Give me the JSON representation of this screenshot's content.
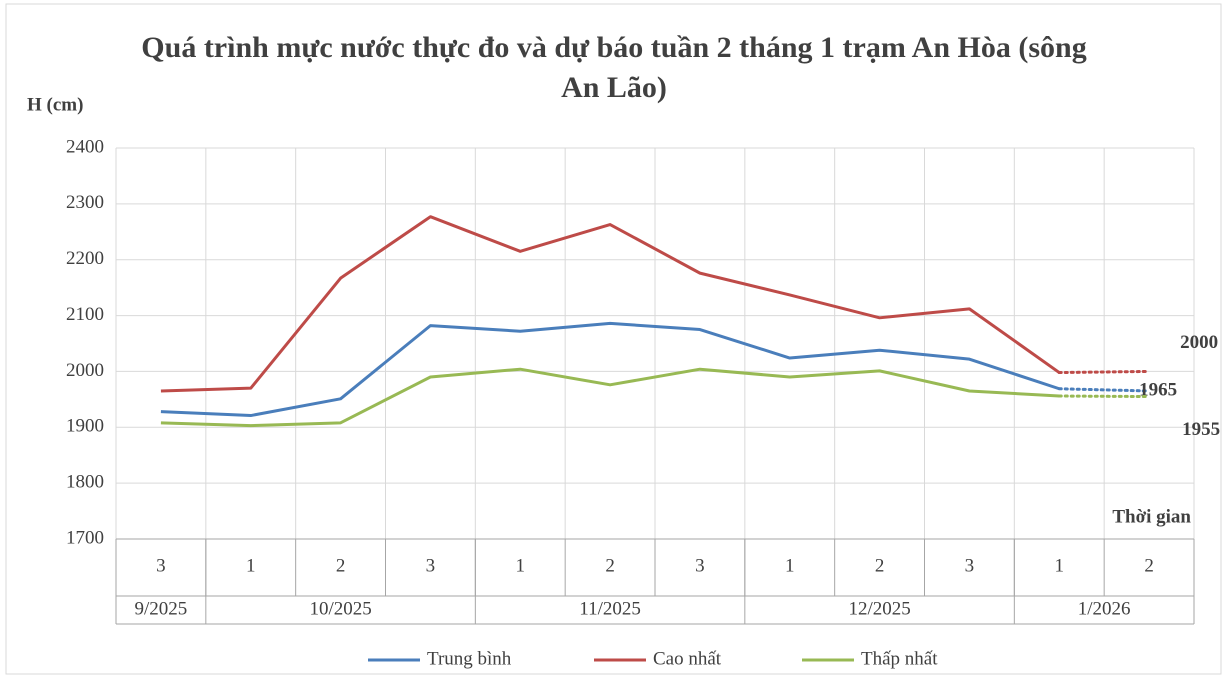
{
  "chart_data": {
    "type": "line",
    "title": "Quá trình mực nước thực đo và dự báo tuần 2 tháng 1 trạm An Hòa (sông An Lão)",
    "y_label": "H (cm)",
    "x_label": "Thời gian",
    "categories": [
      "3",
      "1",
      "2",
      "3",
      "1",
      "2",
      "3",
      "1",
      "2",
      "3",
      "1",
      "2"
    ],
    "category_groups": [
      {
        "name": "9/2025",
        "count": 1
      },
      {
        "name": "10/2025",
        "count": 3
      },
      {
        "name": "11/2025",
        "count": 3
      },
      {
        "name": "12/2025",
        "count": 3
      },
      {
        "name": "1/2026",
        "count": 2
      }
    ],
    "forecast_from": 10,
    "end_labels": true,
    "series": [
      {
        "name": "Trung bình",
        "color": "#4a7ebb",
        "values": [
          1928,
          1921,
          1951,
          2082,
          2072,
          2086,
          2075,
          2024,
          2038,
          2022,
          1969,
          1965
        ]
      },
      {
        "name": "Cao nhất",
        "color": "#be4b48",
        "values": [
          1965,
          1970,
          2167,
          2277,
          2215,
          2263,
          2176,
          2137,
          2096,
          2112,
          1998,
          2000
        ]
      },
      {
        "name": "Thấp nhất",
        "color": "#98b954",
        "values": [
          1908,
          1903,
          1908,
          1990,
          2004,
          1976,
          2004,
          1990,
          2001,
          1965,
          1956,
          1955
        ]
      }
    ],
    "ylim": [
      1700,
      2400
    ],
    "yticks": [
      1700,
      1800,
      1900,
      2000,
      2100,
      2200,
      2300,
      2400
    ],
    "grid": true,
    "legend": "bottom"
  }
}
